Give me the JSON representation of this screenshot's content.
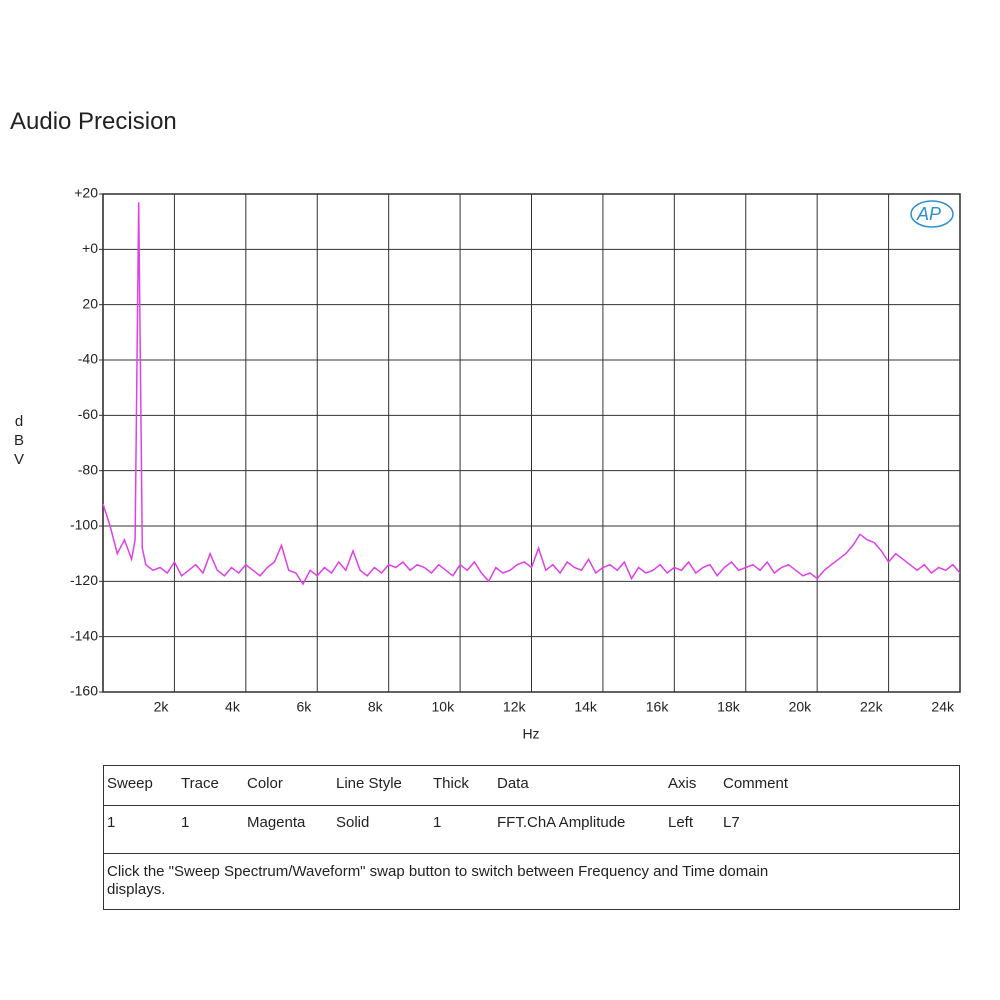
{
  "title": "Audio Precision",
  "logo": "AP",
  "chart_data": {
    "type": "line",
    "xlabel": "Hz",
    "ylabel": "dBV",
    "xlim": [
      0,
      24000
    ],
    "ylim": [
      -160,
      20
    ],
    "xticks": [
      {
        "value": 2000,
        "label": "2k"
      },
      {
        "value": 4000,
        "label": "4k"
      },
      {
        "value": 6000,
        "label": "6k"
      },
      {
        "value": 8000,
        "label": "8k"
      },
      {
        "value": 10000,
        "label": "10k"
      },
      {
        "value": 12000,
        "label": "12k"
      },
      {
        "value": 14000,
        "label": "14k"
      },
      {
        "value": 16000,
        "label": "16k"
      },
      {
        "value": 18000,
        "label": "18k"
      },
      {
        "value": 20000,
        "label": "20k"
      },
      {
        "value": 22000,
        "label": "22k"
      },
      {
        "value": 24000,
        "label": "24k"
      }
    ],
    "yticks": [
      {
        "value": 20,
        "label": "+20"
      },
      {
        "value": 0,
        "label": "+0"
      },
      {
        "value": -20,
        "label": "20"
      },
      -40,
      -60,
      -80,
      -100,
      -120,
      -140,
      -160
    ],
    "grid": true,
    "x": [
      0,
      200,
      400,
      600,
      800,
      900,
      1000,
      1100,
      1200,
      1400,
      1600,
      1800,
      2000,
      2200,
      2400,
      2600,
      2800,
      3000,
      3200,
      3400,
      3600,
      3800,
      4000,
      4200,
      4400,
      4600,
      4800,
      5000,
      5200,
      5400,
      5600,
      5800,
      6000,
      6200,
      6400,
      6600,
      6800,
      7000,
      7200,
      7400,
      7600,
      7800,
      8000,
      8200,
      8400,
      8600,
      8800,
      9000,
      9200,
      9400,
      9600,
      9800,
      10000,
      10200,
      10400,
      10600,
      10800,
      11000,
      11200,
      11400,
      11600,
      11800,
      12000,
      12200,
      12400,
      12600,
      12800,
      13000,
      13200,
      13400,
      13600,
      13800,
      14000,
      14200,
      14400,
      14600,
      14800,
      15000,
      15200,
      15400,
      15600,
      15800,
      16000,
      16200,
      16400,
      16600,
      16800,
      17000,
      17200,
      17400,
      17600,
      17800,
      18000,
      18200,
      18400,
      18600,
      18800,
      19000,
      19200,
      19400,
      19600,
      19800,
      20000,
      20200,
      20400,
      20600,
      20800,
      21000,
      21200,
      21400,
      21600,
      21800,
      22000,
      22200,
      22400,
      22600,
      22800,
      23000,
      23200,
      23400,
      23600,
      23800,
      24000
    ],
    "series": [
      {
        "name": "FFT.ChA Amplitude",
        "color": "#e040e8",
        "values": [
          -92,
          -100,
          -110,
          -105,
          -112,
          -105,
          17,
          -108,
          -114,
          -116,
          -115,
          -117,
          -113,
          -118,
          -116,
          -114,
          -117,
          -110,
          -116,
          -118,
          -115,
          -117,
          -114,
          -116,
          -118,
          -115,
          -113,
          -107,
          -116,
          -117,
          -121,
          -116,
          -118,
          -115,
          -117,
          -113,
          -116,
          -109,
          -116,
          -118,
          -115,
          -117,
          -114,
          -115,
          -113,
          -116,
          -114,
          -115,
          -117,
          -114,
          -116,
          -118,
          -114,
          -116,
          -113,
          -117,
          -120,
          -115,
          -117,
          -116,
          -114,
          -113,
          -115,
          -108,
          -116,
          -114,
          -117,
          -113,
          -115,
          -116,
          -112,
          -117,
          -115,
          -114,
          -116,
          -113,
          -119,
          -115,
          -117,
          -116,
          -114,
          -117,
          -115,
          -116,
          -113,
          -117,
          -115,
          -114,
          -118,
          -115,
          -113,
          -116,
          -115,
          -114,
          -116,
          -113,
          -117,
          -115,
          -114,
          -116,
          -118,
          -117,
          -119,
          -116,
          -114,
          -112,
          -110,
          -107,
          -103,
          -105,
          -106,
          -109,
          -113,
          -110,
          -112,
          -114,
          -116,
          -114,
          -117,
          -115,
          -116,
          -114,
          -117
        ]
      }
    ]
  },
  "table": {
    "header": [
      "Sweep",
      "Trace",
      "Color",
      "Line Style",
      "Thick",
      "Data",
      "Axis",
      "Comment"
    ],
    "rows": [
      [
        1,
        1,
        "Magenta",
        "Solid",
        1,
        "FFT.ChA Amplitude",
        "Left",
        "L7"
      ]
    ],
    "note": "Click the \"Sweep Spectrum/Waveform\" swap button to switch between Frequency and Time domain displays."
  }
}
